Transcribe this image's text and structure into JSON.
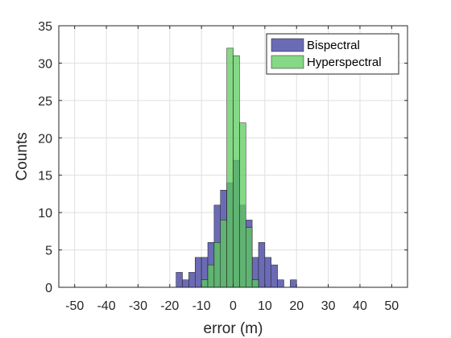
{
  "chart_data": {
    "type": "bar",
    "xlabel": "error (m)",
    "ylabel": "Counts",
    "xlim": [
      -55,
      55
    ],
    "ylim": [
      0,
      35
    ],
    "xticks": [
      -50,
      -40,
      -30,
      -20,
      -10,
      0,
      10,
      20,
      30,
      40,
      50
    ],
    "yticks": [
      0,
      5,
      10,
      15,
      20,
      25,
      30,
      35
    ],
    "grid": true,
    "legend_position": "top-right",
    "bin_width": 2,
    "series": [
      {
        "name": "Bispectral",
        "color": "#6b6bb5",
        "bins": [
          {
            "x": -17,
            "count": 2
          },
          {
            "x": -15,
            "count": 1
          },
          {
            "x": -13,
            "count": 2
          },
          {
            "x": -11,
            "count": 4
          },
          {
            "x": -9,
            "count": 4
          },
          {
            "x": -7,
            "count": 6
          },
          {
            "x": -5,
            "count": 11
          },
          {
            "x": -3,
            "count": 13
          },
          {
            "x": -1,
            "count": 14
          },
          {
            "x": 1,
            "count": 17
          },
          {
            "x": 3,
            "count": 11
          },
          {
            "x": 5,
            "count": 9
          },
          {
            "x": 7,
            "count": 4
          },
          {
            "x": 9,
            "count": 6
          },
          {
            "x": 11,
            "count": 4
          },
          {
            "x": 13,
            "count": 3
          },
          {
            "x": 15,
            "count": 1
          },
          {
            "x": 19,
            "count": 1
          }
        ]
      },
      {
        "name": "Hyperspectral",
        "color": "#5ccb5c",
        "bins": [
          {
            "x": -9,
            "count": 1
          },
          {
            "x": -7,
            "count": 3
          },
          {
            "x": -5,
            "count": 6
          },
          {
            "x": -3,
            "count": 9
          },
          {
            "x": -1,
            "count": 32
          },
          {
            "x": 1,
            "count": 31
          },
          {
            "x": 3,
            "count": 22
          },
          {
            "x": 5,
            "count": 8
          },
          {
            "x": 7,
            "count": 1
          }
        ]
      }
    ]
  }
}
